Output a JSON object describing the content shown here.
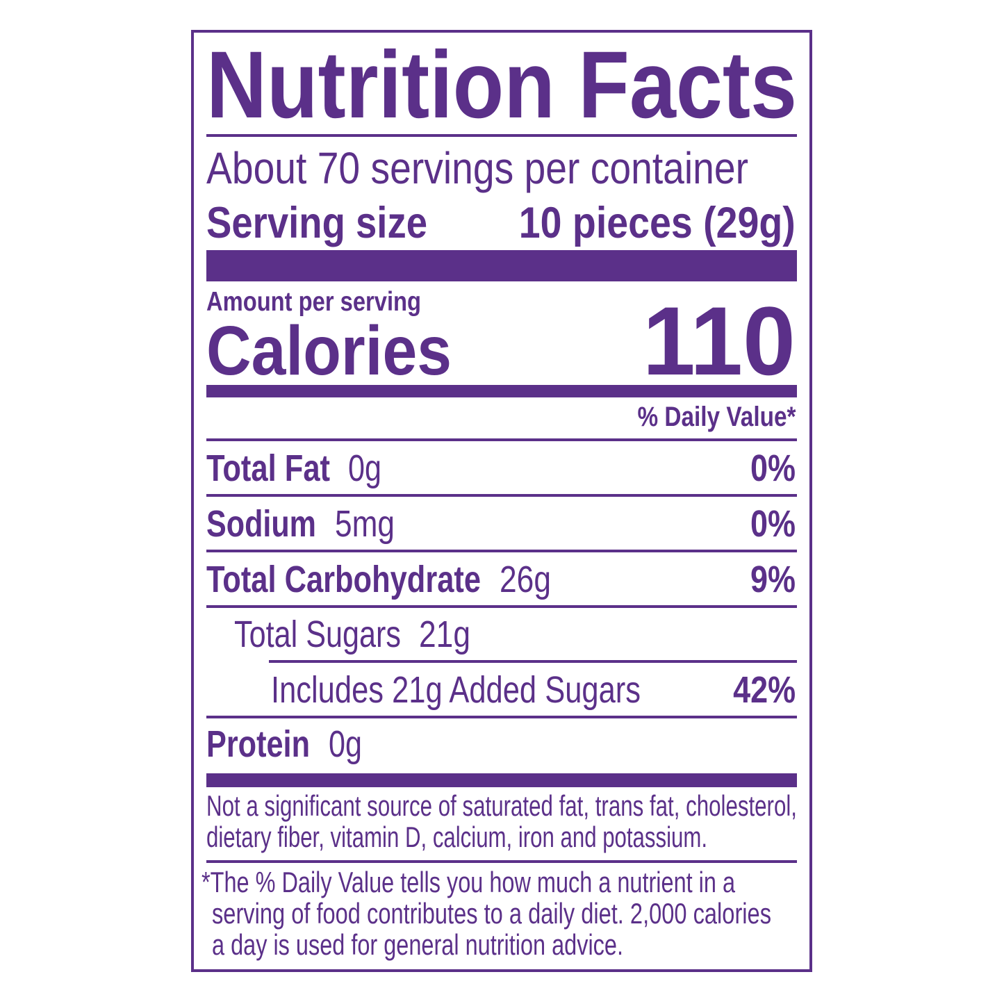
{
  "color": "#5b3089",
  "title": "Nutrition Facts",
  "servings_per_container": "About 70 servings per container",
  "serving_size": {
    "label": "Serving size",
    "value": "10 pieces (29g)"
  },
  "amount_per_serving": "Amount per serving",
  "calories": {
    "label": "Calories",
    "value": "110"
  },
  "daily_value_header": "% Daily Value*",
  "nutrients": [
    {
      "label": "Total Fat",
      "amount": "0g",
      "dv": "0%"
    },
    {
      "label": "Sodium",
      "amount": "5mg",
      "dv": "0%"
    },
    {
      "label": "Total Carbohydrate",
      "amount": "26g",
      "dv": "9%"
    },
    {
      "label": "Total Sugars",
      "amount": "21g"
    },
    {
      "label": "Includes 21g Added Sugars",
      "dv": "42%"
    },
    {
      "label": "Protein",
      "amount": "0g"
    }
  ],
  "not_significant": [
    "Not a significant source of saturated fat, trans fat, cholesterol,",
    "dietary fiber, vitamin D, calcium, iron and potassium."
  ],
  "footnote": [
    "*The % Daily Value tells you how much a nutrient in a",
    "serving of food contributes to a daily diet. 2,000 calories",
    "a day is used for general nutrition advice."
  ]
}
